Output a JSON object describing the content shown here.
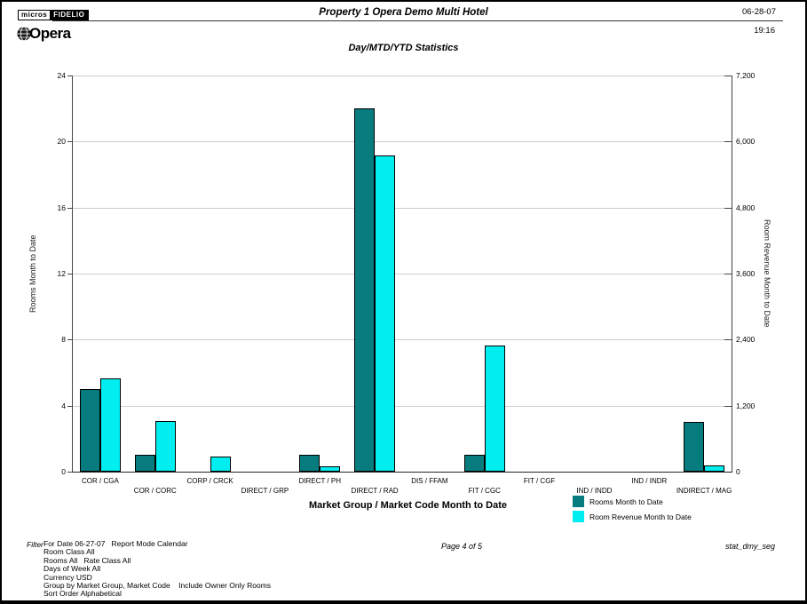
{
  "header": {
    "logo_micros": "micros",
    "logo_fidelio": "FIDELIO",
    "logo_opera": "Opera",
    "property_title": "Property 1 Opera Demo Multi Hotel",
    "date": "06-28-07",
    "time": "19:16"
  },
  "chart_data": {
    "type": "bar",
    "title": "Day/MTD/YTD Statistics",
    "xlabel": "Market Group / Market Code Month to Date",
    "categories": [
      "COR / CGA",
      "COR / CORC",
      "CORP / CRCK",
      "DIRECT / GRP",
      "DIRECT / PH",
      "DIRECT / RAD",
      "DIS / FFAM",
      "FIT / CGC",
      "FIT / CGF",
      "IND / INDD",
      "IND / INDR",
      "INDIRECT / MAG"
    ],
    "left_axis": {
      "label": "Rooms Month to Date",
      "ticks": [
        0,
        4,
        8,
        12,
        16,
        20,
        24
      ],
      "max": 24
    },
    "right_axis": {
      "label": "Room Revenue Month to Date",
      "ticks": [
        "0",
        "1,200",
        "2,400",
        "3,600",
        "4,800",
        "6,000",
        "7,200"
      ],
      "tick_values": [
        0,
        1200,
        2400,
        3600,
        4800,
        6000,
        7200
      ],
      "max": 7200
    },
    "series": [
      {
        "name": "Rooms Month to Date",
        "axis": "left",
        "color": "#077c7e",
        "values": [
          5,
          1,
          0,
          0,
          1,
          22,
          0,
          1,
          0,
          0,
          0,
          3
        ]
      },
      {
        "name": "Room Revenue Month to Date",
        "axis": "right",
        "color": "#00eef0",
        "values": [
          1690,
          920,
          270,
          0,
          100,
          5750,
          0,
          2290,
          0,
          0,
          0,
          110
        ]
      }
    ],
    "legend_position": "bottom-right",
    "grid": true
  },
  "footer": {
    "filter_label": "Filter",
    "filter_lines": [
      "For Date 06-27-07   Report Mode Calendar",
      "Room Class All",
      "Rooms All   Rate Class All",
      "Days of Week All",
      "Currency USD",
      "Group by Market Group, Market Code    Include Owner Only Rooms",
      "Sort Order Alphabetical"
    ],
    "page_info": "Page 4 of 5",
    "report_id": "stat_dmy_seg"
  },
  "colors": {
    "rooms_bar": "#077c7e",
    "revenue_bar": "#00eef0",
    "gridline": "#cccccc",
    "axis": "#444444"
  }
}
